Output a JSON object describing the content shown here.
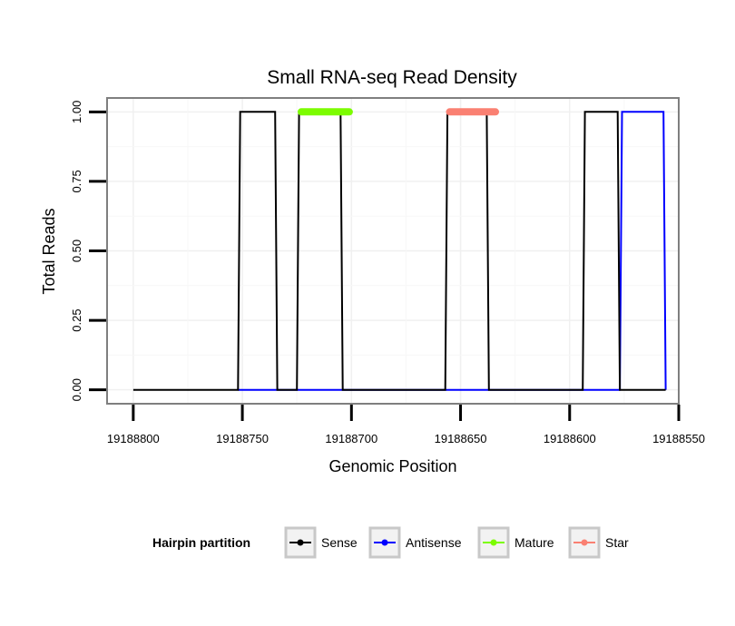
{
  "chart_data": {
    "type": "line",
    "title": "Small RNA-seq Read Density",
    "xlabel": "Genomic Position",
    "ylabel": "Total Reads",
    "xlim": [
      19188812,
      19188550
    ],
    "ylim": [
      -0.05,
      1.05
    ],
    "x_reversed": true,
    "x_ticks": [
      19188800,
      19188750,
      19188700,
      19188650,
      19188600,
      19188550
    ],
    "x_tick_labels": [
      "19188800",
      "19188750",
      "19188700",
      "19188650",
      "19188600",
      "19188550"
    ],
    "y_ticks": [
      0.0,
      0.25,
      0.5,
      0.75,
      1.0
    ],
    "y_tick_labels": [
      "0.00",
      "0.25",
      "0.50",
      "0.75",
      "1.00"
    ],
    "legend": {
      "title": "Hairpin partition",
      "position": "bottom",
      "entries": [
        {
          "name": "Sense",
          "color": "#000000"
        },
        {
          "name": "Antisense",
          "color": "#0000ff"
        },
        {
          "name": "Mature",
          "color": "#7cfc00"
        },
        {
          "name": "Star",
          "color": "#fa8072"
        }
      ]
    },
    "series": [
      {
        "name": "Sense",
        "color": "#000000",
        "x": [
          19188800,
          19188752,
          19188751,
          19188735,
          19188734,
          19188725,
          19188724,
          19188705,
          19188704,
          19188657,
          19188656,
          19188638,
          19188637,
          19188594,
          19188593,
          19188578,
          19188577,
          19188556
        ],
        "y": [
          0,
          0,
          1,
          1,
          0,
          0,
          1,
          1,
          0,
          0,
          1,
          1,
          0,
          0,
          1,
          1,
          0,
          0
        ]
      },
      {
        "name": "Antisense",
        "color": "#0000ff",
        "x": [
          19188752,
          19188577,
          19188576,
          19188557,
          19188556
        ],
        "y": [
          0,
          0,
          1,
          1,
          0
        ]
      },
      {
        "name": "Mature",
        "color": "#7cfc00",
        "x": [
          19188723,
          19188701
        ],
        "y": [
          1,
          1
        ]
      },
      {
        "name": "Star",
        "color": "#fa8072",
        "x": [
          19188655,
          19188634
        ],
        "y": [
          1,
          1
        ]
      }
    ]
  }
}
